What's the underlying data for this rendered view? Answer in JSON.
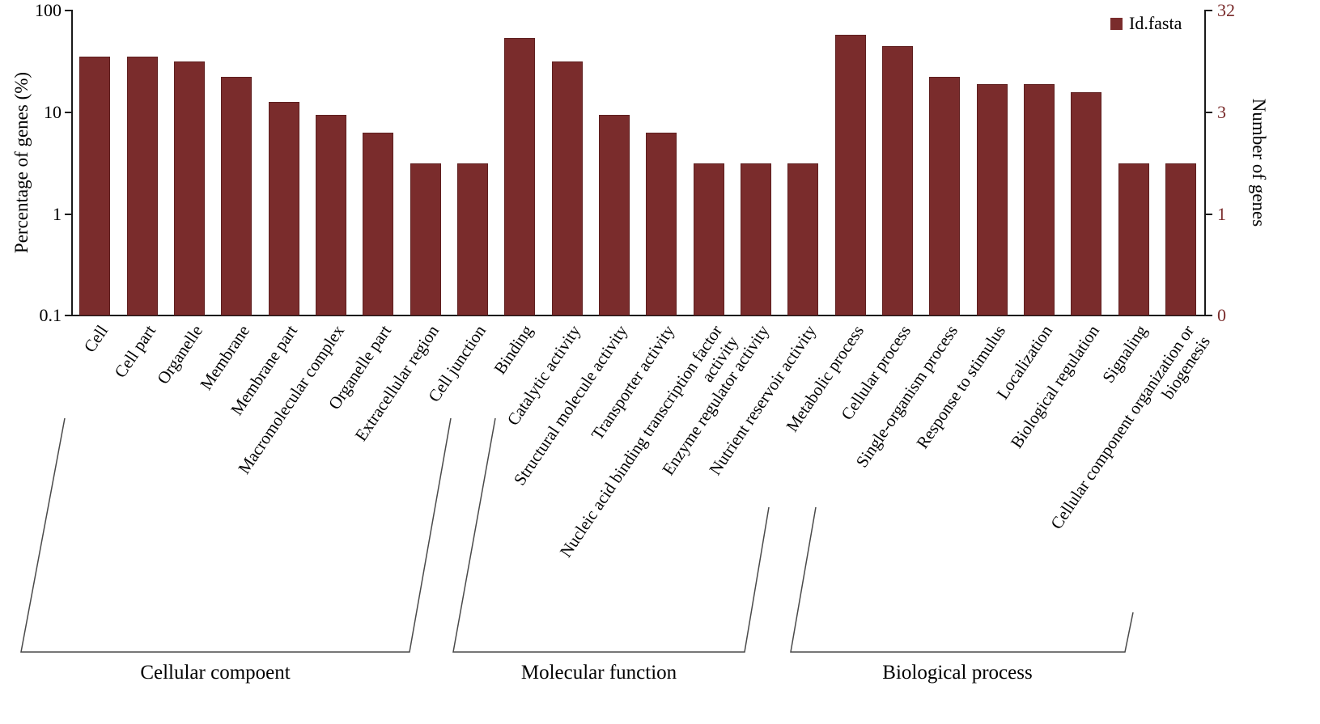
{
  "chart_data": {
    "type": "bar",
    "title": "",
    "legend": {
      "label": "Id.fasta"
    },
    "bar_color": "#7a2c2c",
    "axes": {
      "left_label": "Percentage of genes (%)",
      "right_label": "Number of genes",
      "yscale": "log",
      "ylim": [
        0.1,
        100
      ],
      "left_ticks": [
        "100",
        "10",
        "1",
        "0.1"
      ],
      "right_ticks": [
        "32",
        "3",
        "1",
        "0"
      ]
    },
    "categories": [
      "Cell",
      "Cell part",
      "Organelle",
      "Membrane",
      "Membrane part",
      "Macromolecular complex",
      "Organelle part",
      "Extracellular region",
      "Cell junction",
      "Binding",
      "Catalytic activity",
      "Structural molecule activity",
      "Transporter activity",
      "Nucleic acid binding transcription factor\nactivity",
      "Enzyme regulator activity",
      "Nutrient reservoir activity",
      "Metabolic process",
      "Cellular process",
      "Single-organism process",
      "Response to stimulus",
      "Localization",
      "Biological regulation",
      "Signaling",
      "Cellular component organization or\nbiogenesis"
    ],
    "values_percent": [
      34.375,
      34.375,
      31.25,
      21.875,
      12.5,
      9.375,
      6.25,
      3.125,
      3.125,
      53.125,
      31.25,
      9.375,
      6.25,
      3.125,
      3.125,
      3.125,
      56.25,
      43.75,
      21.875,
      18.75,
      18.75,
      15.625,
      3.125,
      3.125
    ],
    "gene_counts": [
      11,
      11,
      10,
      7,
      4,
      3,
      2,
      1,
      1,
      17,
      10,
      3,
      2,
      1,
      1,
      1,
      18,
      14,
      7,
      6,
      6,
      5,
      1,
      1
    ],
    "groups": [
      {
        "label": "Cellular compoent",
        "from": 0,
        "to": 8
      },
      {
        "label": "Molecular function",
        "from": 9,
        "to": 15
      },
      {
        "label": "Biological process",
        "from": 16,
        "to": 23
      }
    ]
  }
}
